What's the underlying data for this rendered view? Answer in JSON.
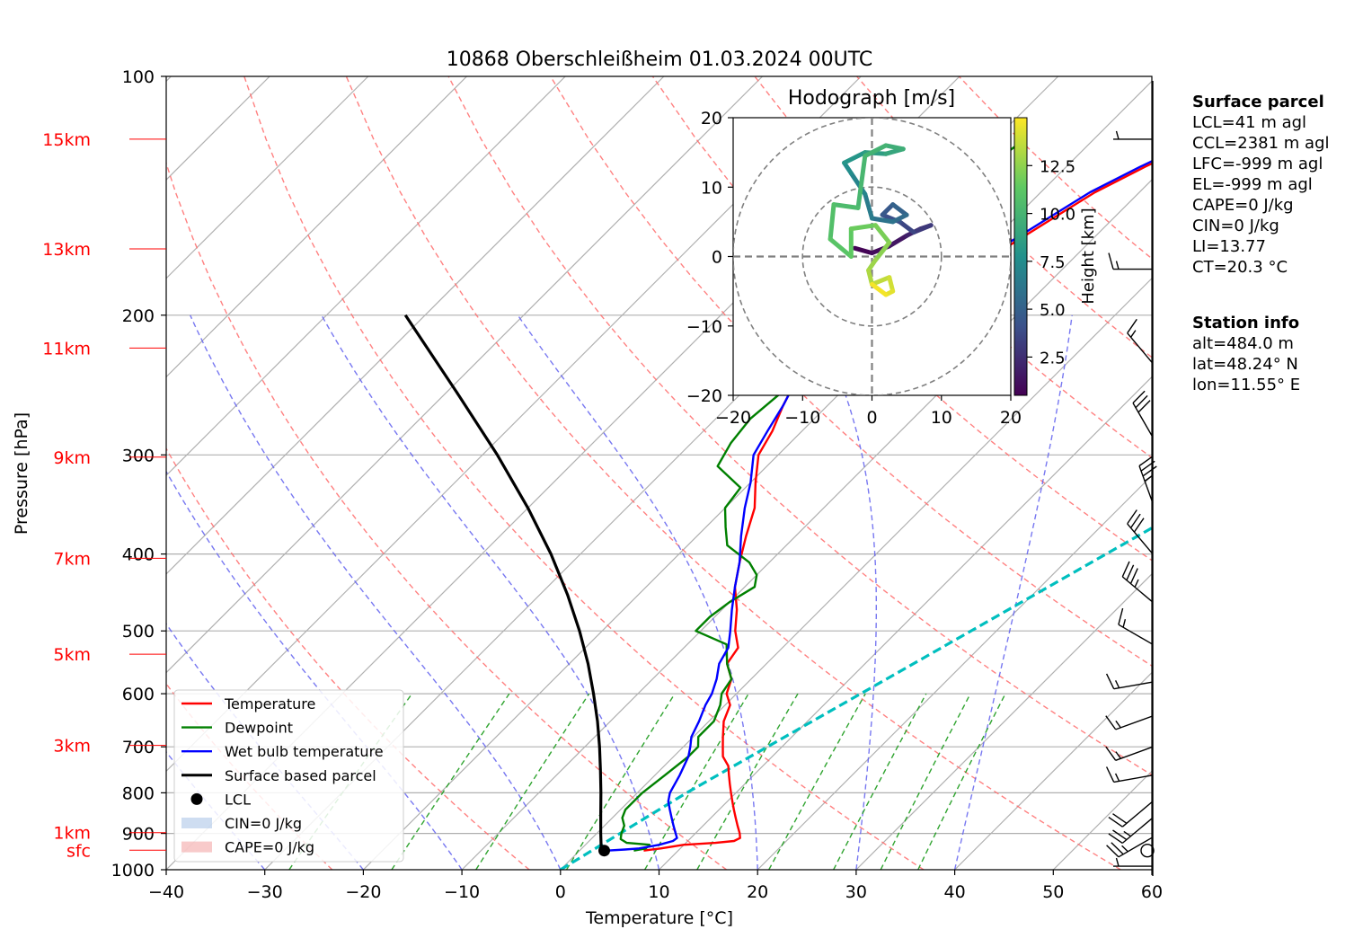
{
  "chart_data": [
    {
      "type": "line",
      "title": "10868 Oberschleißheim 01.03.2024 00UTC",
      "xlabel": "Temperature [°C]",
      "ylabel": "Pressure [hPa]",
      "xlim": [
        -40,
        60
      ],
      "ylim": [
        1000,
        100
      ],
      "log_scale_y": true,
      "grid": true,
      "x_ticks": [
        "−40",
        "−30",
        "−20",
        "−10",
        "0",
        "10",
        "20",
        "30",
        "40",
        "50",
        "60"
      ],
      "y_ticks": [
        {
          "p": 100,
          "label": "100"
        },
        {
          "p": 200,
          "label": "200"
        },
        {
          "p": 300,
          "label": "300"
        },
        {
          "p": 400,
          "label": "400"
        },
        {
          "p": 500,
          "label": "500"
        },
        {
          "p": 600,
          "label": "600"
        },
        {
          "p": 700,
          "label": "700"
        },
        {
          "p": 800,
          "label": "800"
        },
        {
          "p": 900,
          "label": "900"
        },
        {
          "p": 1000,
          "label": "1000"
        }
      ],
      "height_labels": [
        {
          "p": 120,
          "label": "15km"
        },
        {
          "p": 165,
          "label": "13km"
        },
        {
          "p": 220,
          "label": "11km"
        },
        {
          "p": 302,
          "label": "9km"
        },
        {
          "p": 405,
          "label": "7km"
        },
        {
          "p": 535,
          "label": "5km"
        },
        {
          "p": 697,
          "label": "3km"
        },
        {
          "p": 898,
          "label": "1km"
        },
        {
          "p": 945,
          "label": "sfc"
        }
      ],
      "legend": {
        "placement": "lower-left",
        "entries": [
          {
            "label": "Temperature",
            "color": "#ff0000",
            "kind": "line"
          },
          {
            "label": "Dewpoint",
            "color": "#008000",
            "kind": "line"
          },
          {
            "label": "Wet bulb temperature",
            "color": "#0000ff",
            "kind": "line"
          },
          {
            "label": "Surface based parcel",
            "color": "#000000",
            "kind": "line"
          },
          {
            "label": "LCL",
            "color": "#000000",
            "kind": "dot"
          },
          {
            "label": "CIN=0 J/kg",
            "color": "#aec7e8",
            "kind": "patch"
          },
          {
            "label": "CAPE=0 J/kg",
            "color": "#f4a6a6",
            "kind": "patch"
          }
        ]
      },
      "series": [
        {
          "name": "Temperature",
          "color": "#ff0000",
          "points": [
            [
              946,
              6.5
            ],
            [
              940,
              8.0
            ],
            [
              930,
              10.0
            ],
            [
              925,
              13.0
            ],
            [
              920,
              14.7
            ],
            [
              912,
              15.0
            ],
            [
              900,
              14.5
            ],
            [
              880,
              13.5
            ],
            [
              860,
              12.5
            ],
            [
              840,
              11.5
            ],
            [
              820,
              10.5
            ],
            [
              800,
              9.5
            ],
            [
              780,
              8.5
            ],
            [
              760,
              7.5
            ],
            [
              740,
              6.5
            ],
            [
              720,
              5.0
            ],
            [
              700,
              4.0
            ],
            [
              680,
              3.0
            ],
            [
              650,
              1.5
            ],
            [
              620,
              0.5
            ],
            [
              600,
              -1.0
            ],
            [
              575,
              -2.0
            ],
            [
              550,
              -4.0
            ],
            [
              525,
              -4.5
            ],
            [
              500,
              -6.5
            ],
            [
              470,
              -8.5
            ],
            [
              440,
              -11.0
            ],
            [
              410,
              -13.0
            ],
            [
              380,
              -15.0
            ],
            [
              350,
              -17.0
            ],
            [
              325,
              -19.5
            ],
            [
              300,
              -22.0
            ],
            [
              280,
              -23.0
            ],
            [
              260,
              -24.5
            ],
            [
              245,
              -25.5
            ],
            [
              230,
              -26.0
            ],
            [
              220,
              -26.5
            ],
            [
              210,
              -25.0
            ],
            [
              200,
              -24.0
            ],
            [
              190,
              -21.0
            ],
            [
              175,
              -19.5
            ],
            [
              165,
              -18.0
            ],
            [
              150,
              -16.0
            ],
            [
              140,
              -14.5
            ],
            [
              130,
              -12.0
            ],
            [
              125,
              -10.5
            ],
            [
              120,
              -9.0
            ]
          ]
        },
        {
          "name": "Dewpoint",
          "color": "#008000",
          "points": [
            [
              946,
              5.5
            ],
            [
              940,
              6.5
            ],
            [
              930,
              6.5
            ],
            [
              925,
              4.0
            ],
            [
              915,
              3.0
            ],
            [
              900,
              2.5
            ],
            [
              880,
              2.0
            ],
            [
              860,
              1.0
            ],
            [
              840,
              0.5
            ],
            [
              800,
              0.5
            ],
            [
              760,
              1.0
            ],
            [
              720,
              1.5
            ],
            [
              700,
              1.5
            ],
            [
              680,
              0.5
            ],
            [
              650,
              0.5
            ],
            [
              620,
              -0.5
            ],
            [
              600,
              -1.5
            ],
            [
              575,
              -2.0
            ],
            [
              550,
              -4.0
            ],
            [
              520,
              -6.0
            ],
            [
              500,
              -10.5
            ],
            [
              480,
              -10.5
            ],
            [
              460,
              -10.0
            ],
            [
              440,
              -9.0
            ],
            [
              425,
              -10.0
            ],
            [
              410,
              -12.0
            ],
            [
              390,
              -16.0
            ],
            [
              370,
              -18.0
            ],
            [
              350,
              -20.0
            ],
            [
              330,
              -20.5
            ],
            [
              310,
              -25.0
            ],
            [
              290,
              -26.0
            ],
            [
              270,
              -26.5
            ],
            [
              250,
              -26.0
            ],
            [
              235,
              -27.0
            ],
            [
              220,
              -30.0
            ],
            [
              210,
              -31.0
            ],
            [
              205,
              -32.5
            ],
            [
              195,
              -33.0
            ],
            [
              185,
              -33.5
            ],
            [
              170,
              -33.0
            ],
            [
              160,
              -32.0
            ],
            [
              150,
              -30.5
            ],
            [
              140,
              -29.5
            ],
            [
              130,
              -28.5
            ],
            [
              125,
              -27.5
            ],
            [
              120,
              -27.0
            ]
          ]
        },
        {
          "name": "Wet bulb temperature",
          "color": "#0000ff",
          "points": [
            [
              946,
              2.8
            ],
            [
              943,
              4.5
            ],
            [
              940,
              5.8
            ],
            [
              930,
              7.5
            ],
            [
              920,
              8.5
            ],
            [
              912,
              8.6
            ],
            [
              900,
              8.0
            ],
            [
              880,
              7.0
            ],
            [
              860,
              6.0
            ],
            [
              840,
              5.0
            ],
            [
              820,
              4.0
            ],
            [
              800,
              3.3
            ],
            [
              760,
              2.5
            ],
            [
              720,
              1.5
            ],
            [
              700,
              0.7
            ],
            [
              680,
              -0.2
            ],
            [
              650,
              -1.0
            ],
            [
              620,
              -2.0
            ],
            [
              600,
              -2.5
            ],
            [
              575,
              -3.5
            ],
            [
              550,
              -4.8
            ],
            [
              525,
              -5.5
            ],
            [
              500,
              -7.0
            ],
            [
              470,
              -9.0
            ],
            [
              440,
              -11.0
            ],
            [
              410,
              -13.0
            ],
            [
              380,
              -15.5
            ],
            [
              350,
              -18.0
            ],
            [
              325,
              -20.0
            ],
            [
              300,
              -22.5
            ],
            [
              280,
              -23.5
            ],
            [
              260,
              -24.5
            ],
            [
              245,
              -25.5
            ],
            [
              230,
              -26.5
            ],
            [
              220,
              -27.0
            ],
            [
              210,
              -25.5
            ],
            [
              200,
              -24.5
            ],
            [
              190,
              -21.5
            ],
            [
              175,
              -20.0
            ],
            [
              165,
              -18.5
            ],
            [
              150,
              -16.5
            ],
            [
              140,
              -15.0
            ],
            [
              130,
              -12.5
            ],
            [
              125,
              -11.0
            ],
            [
              120,
              -9.5
            ]
          ]
        },
        {
          "name": "Surface based parcel",
          "color": "#000000",
          "points": [
            [
              946,
              2.2
            ],
            [
              900,
              0.4
            ],
            [
              850,
              -1.6
            ],
            [
              800,
              -3.7
            ],
            [
              750,
              -6.0
            ],
            [
              700,
              -8.5
            ],
            [
              650,
              -11.3
            ],
            [
              600,
              -14.5
            ],
            [
              550,
              -18.1
            ],
            [
              500,
              -22.3
            ],
            [
              450,
              -27.2
            ],
            [
              400,
              -33.0
            ],
            [
              350,
              -40.0
            ],
            [
              300,
              -48.5
            ],
            [
              250,
              -59.0
            ],
            [
              200,
              -72.0
            ]
          ]
        }
      ],
      "lcl": {
        "p": 946,
        "t": 2.5
      },
      "cyan_line": {
        "color": "#00bfbf",
        "points": [
          [
            1000,
            0
          ],
          [
            800,
            5
          ],
          [
            100,
            60
          ]
        ]
      },
      "wind_barbs": [
        {
          "p": 990,
          "speed_kt": 5,
          "dir": 270
        },
        {
          "p": 946,
          "speed_kt": 0,
          "dir": 0
        },
        {
          "p": 910,
          "speed_kt": 25,
          "dir": 240
        },
        {
          "p": 860,
          "speed_kt": 25,
          "dir": 230
        },
        {
          "p": 820,
          "speed_kt": 20,
          "dir": 230
        },
        {
          "p": 760,
          "speed_kt": 15,
          "dir": 260
        },
        {
          "p": 700,
          "speed_kt": 15,
          "dir": 250
        },
        {
          "p": 640,
          "speed_kt": 15,
          "dir": 250
        },
        {
          "p": 580,
          "speed_kt": 15,
          "dir": 260
        },
        {
          "p": 520,
          "speed_kt": 15,
          "dir": 300
        },
        {
          "p": 460,
          "speed_kt": 35,
          "dir": 310
        },
        {
          "p": 400,
          "speed_kt": 30,
          "dir": 320
        },
        {
          "p": 345,
          "speed_kt": 35,
          "dir": 340
        },
        {
          "p": 285,
          "speed_kt": 30,
          "dir": 330
        },
        {
          "p": 230,
          "speed_kt": 15,
          "dir": 320
        },
        {
          "p": 175,
          "speed_kt": 15,
          "dir": 270
        },
        {
          "p": 120,
          "speed_kt": 5,
          "dir": 270
        }
      ]
    },
    {
      "type": "scatter",
      "title": "Hodograph [m/s]",
      "xlim": [
        -20,
        20
      ],
      "ylim": [
        -20,
        20
      ],
      "x_ticks": [
        "−20",
        "−10",
        "0",
        "10",
        "20"
      ],
      "y_ticks": [
        "20",
        "10",
        "0",
        "−10",
        "−20"
      ],
      "rings": [
        10,
        20
      ],
      "colorbar": {
        "label": "Height [km]",
        "range": [
          0.5,
          15
        ],
        "ticks": [
          "2.5",
          "5.0",
          "7.5",
          "10.0",
          "12.5"
        ]
      },
      "points": [
        [
          -2.5,
          1.2,
          0.5
        ],
        [
          0,
          0.5,
          0.8
        ],
        [
          2.5,
          1.5,
          1.2
        ],
        [
          5,
          3,
          1.7
        ],
        [
          7,
          4,
          2.2
        ],
        [
          8.5,
          4.5,
          2.8
        ],
        [
          6,
          3.5,
          3.3
        ],
        [
          4,
          5,
          3.8
        ],
        [
          1.5,
          6,
          4.3
        ],
        [
          3,
          7.5,
          4.8
        ],
        [
          5,
          6,
          5.3
        ],
        [
          3,
          5,
          5.8
        ],
        [
          0,
          5.5,
          6.3
        ],
        [
          -1,
          9,
          6.8
        ],
        [
          -3,
          12,
          7.2
        ],
        [
          -4,
          13.5,
          7.8
        ],
        [
          -1,
          15,
          8.3
        ],
        [
          2,
          14.8,
          8.8
        ],
        [
          4.5,
          15.5,
          9.3
        ],
        [
          2,
          16,
          9.8
        ],
        [
          -1,
          14.5,
          10.0
        ],
        [
          -2,
          7,
          10.3
        ],
        [
          -5.5,
          7.5,
          10.6
        ],
        [
          -6,
          2.5,
          10.9
        ],
        [
          -3,
          0,
          11.2
        ],
        [
          -3,
          4,
          11.5
        ],
        [
          0.5,
          4.5,
          11.8
        ],
        [
          2.5,
          2,
          12.2
        ],
        [
          0.5,
          -0.5,
          12.6
        ],
        [
          -0.5,
          -2,
          13.0
        ],
        [
          0,
          -4,
          13.4
        ],
        [
          2.5,
          -3,
          13.8
        ],
        [
          3,
          -5,
          14.2
        ],
        [
          2,
          -5.5,
          14.6
        ],
        [
          0,
          -4,
          15.0
        ]
      ]
    }
  ],
  "info": {
    "surface_parcel": {
      "title": "Surface parcel",
      "lines": [
        "LCL=41 m agl",
        "CCL=2381 m agl",
        "LFC=-999 m agl",
        "EL=-999 m agl",
        "CAPE=0 J/kg",
        "CIN=0 J/kg",
        "LI=13.77",
        "CT=20.3 °C"
      ]
    },
    "station_info": {
      "title": "Station info",
      "lines": [
        "alt=484.0 m",
        "lat=48.24° N",
        "lon=11.55° E"
      ]
    }
  }
}
